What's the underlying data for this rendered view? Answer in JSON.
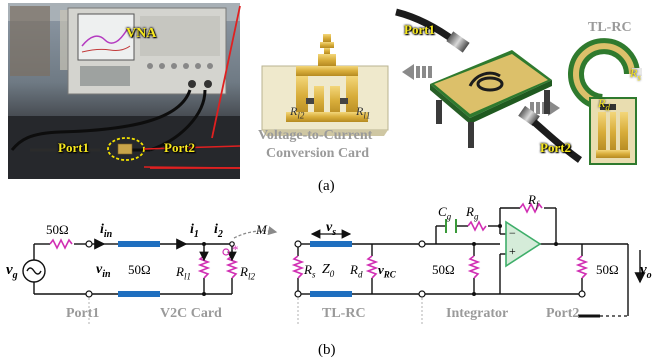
{
  "photo": {
    "vna_label": "VNA",
    "port1": "Port1",
    "port2": "Port2"
  },
  "card": {
    "r12": "R",
    "r12_sub": "l2",
    "r11": "R",
    "r11_sub": "l1",
    "caption_line1": "Voltage-to-Current",
    "caption_line2": "Conversion Card"
  },
  "setup": {
    "port1": "Port1",
    "port2": "Port2"
  },
  "tlrc": {
    "title": "TL-RC",
    "rs": "R",
    "rs_sub": "s",
    "rd": "R",
    "rd_sub": "d"
  },
  "caption_a": "(a)",
  "caption_b": "(b)",
  "circuit": {
    "source_v": "v",
    "source_sub": "g",
    "rsrc": "50Ω",
    "iin": "i",
    "iin_sub": "in",
    "vin": "v",
    "vin_sub": "in",
    "z_card": "50Ω",
    "i1": "i",
    "i1_sub": "1",
    "i2": "i",
    "i2_sub": "2",
    "r11": "R",
    "r11_sub": "l1",
    "r12": "R",
    "r12_sub": "l2",
    "mutual": "M",
    "star": "*",
    "vs": "v",
    "vs_sub": "s",
    "rs": "R",
    "rs_sub": "s",
    "z0": "Z",
    "z0_sub": "0",
    "rd": "R",
    "rd_sub": "d",
    "vrc": "v",
    "vrc_sub": "RC",
    "rload": "50Ω",
    "cg": "C",
    "cg_sub": "g",
    "rg": "R",
    "rg_sub": "g",
    "rf": "R",
    "rf_sub": "f",
    "minus": "−",
    "plus": "+",
    "rout": "50Ω",
    "vo": "v",
    "vo_sub": "o",
    "section_port1": "Port1",
    "section_v2c": "V2C Card",
    "section_tlrc": "TL-RC",
    "section_integrator": "Integrator",
    "section_port2": "Port2"
  },
  "colors": {
    "gold": "#d9b13a",
    "pcb_green": "#2f7a2e",
    "resistor": "#d12fb3",
    "capacitor": "#3a9a3a",
    "tline": "#1f6fbf",
    "opamp": "#3fae6a",
    "red_line": "#e02020",
    "label_grey": "#9a9a9a"
  }
}
